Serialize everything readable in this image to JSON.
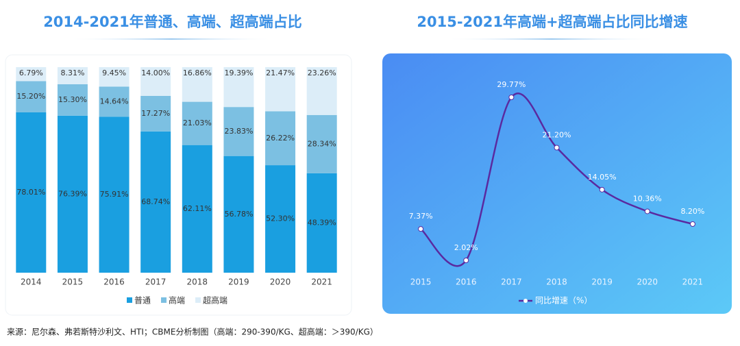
{
  "chart_data": [
    {
      "type": "stacked-bar",
      "title": "2014-2021年普通、高端、超高端占比",
      "categories": [
        "2014",
        "2015",
        "2016",
        "2017",
        "2018",
        "2019",
        "2020",
        "2021"
      ],
      "series": [
        {
          "name": "普通",
          "color": "#1a9fe0",
          "values": [
            78.01,
            76.39,
            75.91,
            68.74,
            62.11,
            56.78,
            52.3,
            48.39
          ],
          "value_labels": [
            "78.01%",
            "76.39%",
            "75.91%",
            "68.74%",
            "62.11%",
            "56.78%",
            "52.30%",
            "48.39%"
          ]
        },
        {
          "name": "高端",
          "color": "#7cc0e2",
          "values": [
            15.2,
            15.3,
            14.64,
            17.27,
            21.03,
            23.83,
            26.22,
            28.34
          ],
          "value_labels": [
            "15.20%",
            "15.30%",
            "14.64%",
            "17.27%",
            "21.03%",
            "23.83%",
            "26.22%",
            "28.34%"
          ]
        },
        {
          "name": "超高端",
          "color": "#dcedf8",
          "values": [
            6.79,
            8.31,
            9.45,
            14.0,
            16.86,
            19.39,
            21.47,
            23.26
          ],
          "value_labels": [
            "6.79%",
            "8.31%",
            "9.45%",
            "14.00%",
            "16.86%",
            "19.39%",
            "21.47%",
            "23.26%"
          ]
        }
      ]
    },
    {
      "type": "line",
      "title": "2015-2021年高端+超高端占比同比增速",
      "categories": [
        "2015",
        "2016",
        "2017",
        "2018",
        "2019",
        "2020",
        "2021"
      ],
      "series": [
        {
          "name": "同比增速（%）",
          "color": "#5a2aa0",
          "values": [
            7.37,
            2.02,
            29.77,
            21.2,
            14.05,
            10.36,
            8.2
          ],
          "value_labels": [
            "7.37%",
            "2.02%",
            "29.77%",
            "21.20%",
            "14.05%",
            "10.36%",
            "8.20%"
          ]
        }
      ]
    }
  ],
  "source": "来源：尼尔森、弗若斯特沙利文、HTI；CBME分析制图（高端：290-390/KG、超高端：＞390/KG）"
}
